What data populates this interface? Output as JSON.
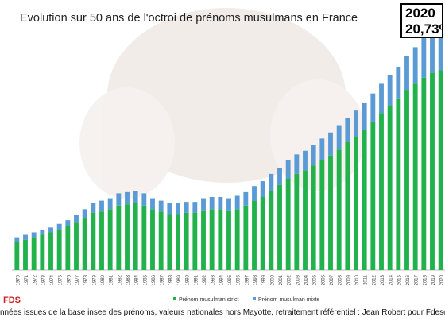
{
  "chart_data": {
    "type": "bar",
    "stacked": true,
    "title": "Evolution sur 50 ans de l'octroi de prénoms musulmans en France",
    "categories": [
      "1970",
      "1971",
      "1972",
      "1973",
      "1974",
      "1975",
      "1976",
      "1977",
      "1978",
      "1979",
      "1980",
      "1981",
      "1982",
      "1983",
      "1984",
      "1985",
      "1986",
      "1987",
      "1988",
      "1989",
      "1990",
      "1991",
      "1992",
      "1993",
      "1994",
      "1995",
      "1996",
      "1997",
      "1998",
      "1999",
      "2000",
      "2001",
      "2002",
      "2003",
      "2004",
      "2005",
      "2006",
      "2007",
      "2008",
      "2009",
      "2010",
      "2011",
      "2012",
      "2013",
      "2014",
      "2015",
      "2016",
      "2017",
      "2018",
      "2019",
      "2020"
    ],
    "series": [
      {
        "name": "Prénom musulman strict",
        "color": "#22b24c",
        "values": [
          2.3,
          2.5,
          2.7,
          2.9,
          3.1,
          3.3,
          3.6,
          3.9,
          4.3,
          4.7,
          4.8,
          5.0,
          5.3,
          5.4,
          5.5,
          5.3,
          5.0,
          4.8,
          4.6,
          4.6,
          4.7,
          4.7,
          4.9,
          5.0,
          5.0,
          4.9,
          5.0,
          5.3,
          5.7,
          6.0,
          6.5,
          7.0,
          7.5,
          7.9,
          8.2,
          8.6,
          9.0,
          9.4,
          9.9,
          10.5,
          11.0,
          11.5,
          12.2,
          12.9,
          13.5,
          14.1,
          14.8,
          15.3,
          15.8,
          16.2,
          16.4
        ]
      },
      {
        "name": "Prénom musulman mixte",
        "color": "#5b9bd5",
        "values": [
          0.4,
          0.4,
          0.4,
          0.4,
          0.4,
          0.5,
          0.5,
          0.6,
          0.7,
          0.8,
          0.9,
          0.9,
          1.0,
          1.0,
          1.0,
          1.0,
          0.9,
          0.9,
          0.9,
          0.9,
          0.9,
          0.9,
          1.0,
          1.0,
          1.0,
          1.0,
          1.1,
          1.1,
          1.2,
          1.3,
          1.4,
          1.4,
          1.5,
          1.6,
          1.6,
          1.7,
          1.8,
          1.9,
          2.0,
          2.0,
          2.1,
          2.2,
          2.3,
          2.4,
          2.5,
          2.6,
          2.8,
          3.0,
          3.3,
          3.6,
          4.3
        ]
      }
    ],
    "ylim": [
      0,
      21
    ],
    "xlabel": "",
    "ylabel": "",
    "legend_position": "bottom",
    "grid": false
  },
  "annotation": {
    "year": "2020",
    "value": "20,73%"
  },
  "source_note": "nnées issues de la base insee des prénoms, valeurs nationales hors Mayotte, retraitement référentiel : Jean Robert pour Fdesouche",
  "logo_text": "FDS"
}
